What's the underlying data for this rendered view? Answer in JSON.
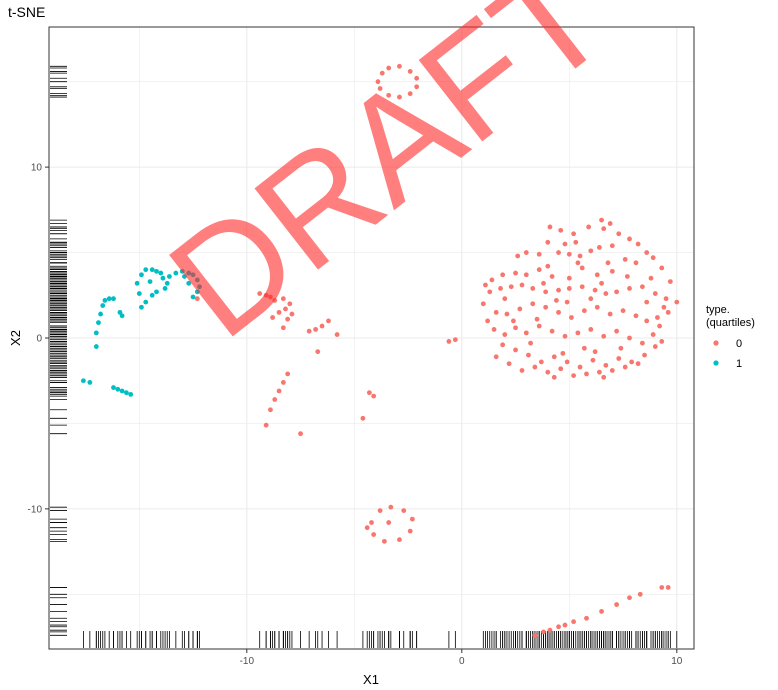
{
  "chart_data": {
    "type": "scatter",
    "title": "t-SNE",
    "xlabel": "X1",
    "ylabel": "X2",
    "xlim": [
      -19.2,
      10.8
    ],
    "ylim": [
      -18.2,
      18.2
    ],
    "x_ticks": [
      -10,
      0,
      10
    ],
    "y_ticks": [
      -10,
      0,
      10
    ],
    "grid": true,
    "rug": true,
    "legend": {
      "title": "type.\n(quartiles)",
      "placement": "right",
      "entries": [
        {
          "label": "0",
          "color": "#F8766D"
        },
        {
          "label": "1",
          "color": "#00BFC4"
        }
      ]
    },
    "watermark": "DRAFT",
    "series": [
      {
        "name": "0",
        "color": "#F8766D",
        "points": [
          [
            -3.4,
            15.8
          ],
          [
            -2.9,
            15.9
          ],
          [
            -2.4,
            15.6
          ],
          [
            -2.1,
            15.2
          ],
          [
            -2.1,
            14.7
          ],
          [
            -2.4,
            14.3
          ],
          [
            -2.9,
            14.1
          ],
          [
            -3.4,
            14.2
          ],
          [
            -3.8,
            14.6
          ],
          [
            -3.9,
            15.0
          ],
          [
            -3.7,
            15.5
          ],
          [
            -12.3,
            2.3
          ],
          [
            -9.4,
            2.6
          ],
          [
            -9.1,
            2.5
          ],
          [
            -8.9,
            2.4
          ],
          [
            -8.7,
            2.2
          ],
          [
            -8.3,
            2.3
          ],
          [
            -8.2,
            1.7
          ],
          [
            -8.0,
            2.0
          ],
          [
            -8.8,
            1.2
          ],
          [
            -8.5,
            1.5
          ],
          [
            -8.1,
            1.1
          ],
          [
            -7.9,
            1.4
          ],
          [
            -8.3,
            0.6
          ],
          [
            -7.1,
            0.4
          ],
          [
            -6.8,
            0.5
          ],
          [
            -6.5,
            0.7
          ],
          [
            -6.2,
            1.0
          ],
          [
            -5.8,
            0.2
          ],
          [
            -6.7,
            -0.8
          ],
          [
            -8.1,
            -2.1
          ],
          [
            -8.3,
            -2.6
          ],
          [
            -8.5,
            -3.1
          ],
          [
            -8.7,
            -3.6
          ],
          [
            -8.9,
            -4.2
          ],
          [
            -9.1,
            -5.1
          ],
          [
            -7.5,
            -5.6
          ],
          [
            -4.3,
            -3.2
          ],
          [
            -4.1,
            -3.4
          ],
          [
            -4.6,
            -4.7
          ],
          [
            -0.6,
            -0.2
          ],
          [
            -0.3,
            -0.1
          ],
          [
            -4.2,
            -10.8
          ],
          [
            -3.8,
            -10.1
          ],
          [
            -3.3,
            -9.9
          ],
          [
            -2.7,
            -10.1
          ],
          [
            -2.3,
            -10.6
          ],
          [
            -2.4,
            -11.3
          ],
          [
            -2.9,
            -11.8
          ],
          [
            -3.6,
            -11.9
          ],
          [
            -4.1,
            -11.5
          ],
          [
            -4.4,
            -11.1
          ],
          [
            -3.4,
            -10.8
          ],
          [
            3.4,
            -17.4
          ],
          [
            3.8,
            -17.2
          ],
          [
            4.1,
            -17.1
          ],
          [
            4.5,
            -16.9
          ],
          [
            4.8,
            -16.8
          ],
          [
            5.2,
            -16.6
          ],
          [
            5.8,
            -16.4
          ],
          [
            6.5,
            -16.0
          ],
          [
            7.2,
            -15.6
          ],
          [
            7.8,
            -15.2
          ],
          [
            8.3,
            -15.0
          ],
          [
            9.3,
            -14.6
          ],
          [
            9.6,
            -14.6
          ],
          [
            6.5,
            6.9
          ],
          [
            6.9,
            6.7
          ],
          [
            6.6,
            6.4
          ],
          [
            4.1,
            6.5
          ],
          [
            4.6,
            6.3
          ],
          [
            5.2,
            6.1
          ],
          [
            4.0,
            5.6
          ],
          [
            4.8,
            5.5
          ],
          [
            4.5,
            5.0
          ],
          [
            5.0,
            4.9
          ],
          [
            5.5,
            4.8
          ],
          [
            3.6,
            4.9
          ],
          [
            3.0,
            5.0
          ],
          [
            2.6,
            4.8
          ],
          [
            6.0,
            5.1
          ],
          [
            6.4,
            5.3
          ],
          [
            7.3,
            6.1
          ],
          [
            7.8,
            5.8
          ],
          [
            8.2,
            5.5
          ],
          [
            8.6,
            5.0
          ],
          [
            8.9,
            4.7
          ],
          [
            9.3,
            4.1
          ],
          [
            7.6,
            4.6
          ],
          [
            8.1,
            4.4
          ],
          [
            6.8,
            4.4
          ],
          [
            7.0,
            3.9
          ],
          [
            6.3,
            3.7
          ],
          [
            5.6,
            4.1
          ],
          [
            5.0,
            3.5
          ],
          [
            4.2,
            3.6
          ],
          [
            3.6,
            4.0
          ],
          [
            3.0,
            3.7
          ],
          [
            2.5,
            3.8
          ],
          [
            1.9,
            3.7
          ],
          [
            1.4,
            3.4
          ],
          [
            1.1,
            3.1
          ],
          [
            1.3,
            2.7
          ],
          [
            1.8,
            2.9
          ],
          [
            2.3,
            3.0
          ],
          [
            2.8,
            3.1
          ],
          [
            3.3,
            2.9
          ],
          [
            3.9,
            2.7
          ],
          [
            4.5,
            2.8
          ],
          [
            5.0,
            2.9
          ],
          [
            5.6,
            3.0
          ],
          [
            6.2,
            2.8
          ],
          [
            6.7,
            2.6
          ],
          [
            7.2,
            2.7
          ],
          [
            7.8,
            2.9
          ],
          [
            8.4,
            3.0
          ],
          [
            9.0,
            2.6
          ],
          [
            9.5,
            2.3
          ],
          [
            10.0,
            2.1
          ],
          [
            9.6,
            1.5
          ],
          [
            9.1,
            1.2
          ],
          [
            8.6,
            1.0
          ],
          [
            8.1,
            1.3
          ],
          [
            7.5,
            1.6
          ],
          [
            6.9,
            1.4
          ],
          [
            6.3,
            1.8
          ],
          [
            5.7,
            1.6
          ],
          [
            5.1,
            1.2
          ],
          [
            4.5,
            1.5
          ],
          [
            3.9,
            1.8
          ],
          [
            3.3,
            2.0
          ],
          [
            2.7,
            1.7
          ],
          [
            2.1,
            1.4
          ],
          [
            1.6,
            1.5
          ],
          [
            1.2,
            1.0
          ],
          [
            1.5,
            0.5
          ],
          [
            2.0,
            0.2
          ],
          [
            2.5,
            0.6
          ],
          [
            3.0,
            0.3
          ],
          [
            3.6,
            0.7
          ],
          [
            4.2,
            0.4
          ],
          [
            4.8,
            0.1
          ],
          [
            5.4,
            0.3
          ],
          [
            6.0,
            0.5
          ],
          [
            6.6,
            0.1
          ],
          [
            7.2,
            0.4
          ],
          [
            7.8,
            0.0
          ],
          [
            8.4,
            -0.3
          ],
          [
            8.9,
            0.2
          ],
          [
            9.2,
            0.7
          ],
          [
            9.0,
            -0.5
          ],
          [
            8.5,
            -1.0
          ],
          [
            7.9,
            -1.4
          ],
          [
            7.3,
            -1.2
          ],
          [
            6.7,
            -1.6
          ],
          [
            6.1,
            -1.3
          ],
          [
            5.5,
            -1.7
          ],
          [
            4.9,
            -1.4
          ],
          [
            4.3,
            -1.1
          ],
          [
            3.7,
            -1.4
          ],
          [
            3.1,
            -1.0
          ],
          [
            2.5,
            -0.7
          ],
          [
            1.9,
            -0.4
          ],
          [
            1.6,
            -1.1
          ],
          [
            2.2,
            -1.5
          ],
          [
            2.8,
            -1.9
          ],
          [
            3.4,
            -1.7
          ],
          [
            4.0,
            -2.0
          ],
          [
            4.6,
            -1.8
          ],
          [
            5.2,
            -2.2
          ],
          [
            5.8,
            -2.1
          ],
          [
            6.4,
            -2.0
          ],
          [
            7.0,
            -1.9
          ],
          [
            7.6,
            -1.7
          ],
          [
            8.2,
            -1.5
          ],
          [
            5.3,
            5.6
          ],
          [
            5.9,
            6.5
          ],
          [
            7.0,
            5.4
          ],
          [
            3.8,
            3.2
          ],
          [
            4.4,
            2.2
          ],
          [
            6.5,
            3.2
          ],
          [
            8.8,
            3.5
          ],
          [
            9.7,
            3.3
          ],
          [
            2.0,
            2.3
          ],
          [
            1.0,
            2.0
          ],
          [
            5.7,
            -0.6
          ],
          [
            4.7,
            -0.9
          ],
          [
            3.2,
            -0.3
          ],
          [
            7.4,
            -0.6
          ],
          [
            6.2,
            -0.8
          ],
          [
            8.6,
            2.1
          ],
          [
            9.4,
            1.8
          ],
          [
            6.0,
            2.3
          ],
          [
            4.9,
            2.1
          ],
          [
            3.5,
            1.1
          ],
          [
            2.4,
            1.0
          ],
          [
            7.7,
            3.6
          ],
          [
            5.4,
            4.4
          ],
          [
            4.0,
            4.2
          ],
          [
            6.6,
            -2.3
          ],
          [
            4.3,
            -2.3
          ],
          [
            9.3,
            -0.2
          ]
        ]
      },
      {
        "name": "1",
        "color": "#00BFC4",
        "points": [
          [
            -17.6,
            -2.5
          ],
          [
            -17.3,
            -2.6
          ],
          [
            -16.2,
            -2.9
          ],
          [
            -16.0,
            -3.0
          ],
          [
            -15.8,
            -3.1
          ],
          [
            -15.6,
            -3.2
          ],
          [
            -15.4,
            -3.3
          ],
          [
            -17.0,
            -0.5
          ],
          [
            -17.0,
            0.3
          ],
          [
            -16.9,
            0.9
          ],
          [
            -16.8,
            1.4
          ],
          [
            -16.7,
            1.9
          ],
          [
            -16.6,
            2.2
          ],
          [
            -16.4,
            2.3
          ],
          [
            -16.2,
            2.3
          ],
          [
            -15.9,
            1.5
          ],
          [
            -15.8,
            1.3
          ],
          [
            -15.1,
            3.2
          ],
          [
            -14.9,
            3.7
          ],
          [
            -14.7,
            4.0
          ],
          [
            -14.4,
            4.0
          ],
          [
            -14.2,
            3.9
          ],
          [
            -14.0,
            3.8
          ],
          [
            -13.9,
            3.5
          ],
          [
            -13.7,
            3.2
          ],
          [
            -13.6,
            3.6
          ],
          [
            -14.5,
            3.3
          ],
          [
            -14.2,
            2.7
          ],
          [
            -14.4,
            2.5
          ],
          [
            -14.7,
            2.1
          ],
          [
            -14.9,
            1.8
          ],
          [
            -15.0,
            2.6
          ],
          [
            -13.8,
            2.9
          ],
          [
            -13.3,
            3.8
          ],
          [
            -13.0,
            3.9
          ],
          [
            -12.7,
            3.8
          ],
          [
            -12.5,
            3.7
          ],
          [
            -12.3,
            3.4
          ],
          [
            -12.2,
            3.0
          ],
          [
            -12.3,
            2.7
          ],
          [
            -12.5,
            2.4
          ],
          [
            -12.7,
            3.2
          ],
          [
            -12.9,
            3.6
          ]
        ]
      }
    ]
  }
}
